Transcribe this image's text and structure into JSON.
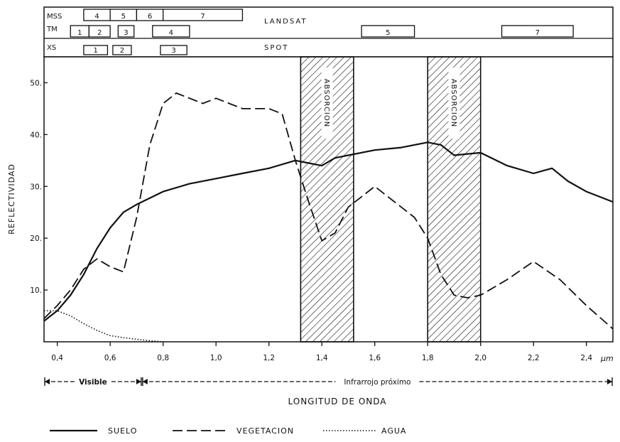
{
  "header": {
    "mss_label": "MSS",
    "tm_label": "TM",
    "xs_label": "XS",
    "landsat_label": "LANDSAT",
    "spot_label": "SPOT",
    "mss_bands": [
      {
        "label": "4",
        "range": [
          0.5,
          0.6
        ]
      },
      {
        "label": "5",
        "range": [
          0.6,
          0.7
        ]
      },
      {
        "label": "6",
        "range": [
          0.7,
          0.8
        ]
      },
      {
        "label": "7",
        "range": [
          0.8,
          1.1
        ]
      }
    ],
    "tm_bands": [
      {
        "label": "1",
        "range": [
          0.45,
          0.52
        ]
      },
      {
        "label": "2",
        "range": [
          0.52,
          0.6
        ]
      },
      {
        "label": "3",
        "range": [
          0.63,
          0.69
        ]
      },
      {
        "label": "4",
        "range": [
          0.76,
          0.9
        ]
      },
      {
        "label": "5",
        "range": [
          1.55,
          1.75
        ]
      },
      {
        "label": "7",
        "range": [
          2.08,
          2.35
        ]
      }
    ],
    "xs_bands": [
      {
        "label": "1",
        "range": [
          0.5,
          0.59
        ]
      },
      {
        "label": "2",
        "range": [
          0.61,
          0.68
        ]
      },
      {
        "label": "3",
        "range": [
          0.79,
          0.89
        ]
      }
    ]
  },
  "chart_data": {
    "type": "line",
    "ylabel": "REFLECTIVIDAD",
    "xlabel": "LONGITUD DE ONDA",
    "x_unit": "µm",
    "xlim": [
      0.35,
      2.5
    ],
    "ylim": [
      0,
      55
    ],
    "x_ticks": [
      "0,4",
      "0,6",
      "0,8",
      "1,0",
      "1,2",
      "1,4",
      "1,6",
      "1,8",
      "2,0",
      "2,2",
      "2,4"
    ],
    "x_tick_values": [
      0.4,
      0.6,
      0.8,
      1.0,
      1.2,
      1.4,
      1.6,
      1.8,
      2.0,
      2.2,
      2.4
    ],
    "y_ticks": [
      "10",
      "20",
      "30",
      "40",
      "50"
    ],
    "y_tick_values": [
      10,
      20,
      30,
      40,
      50
    ],
    "absorption_bands": [
      {
        "label": "ABSORCION",
        "range": [
          1.32,
          1.52
        ]
      },
      {
        "label": "ABSORCION",
        "range": [
          1.8,
          2.0
        ]
      }
    ],
    "regions": [
      {
        "label": "Visible",
        "range": [
          0.35,
          0.72
        ]
      },
      {
        "label": "Infrarrojo próximo",
        "range": [
          0.72,
          2.5
        ]
      }
    ],
    "series": [
      {
        "name": "SUELO",
        "style": "solid",
        "x": [
          0.35,
          0.4,
          0.45,
          0.5,
          0.55,
          0.6,
          0.65,
          0.7,
          0.8,
          0.9,
          1.0,
          1.1,
          1.2,
          1.3,
          1.35,
          1.4,
          1.45,
          1.5,
          1.6,
          1.7,
          1.8,
          1.85,
          1.9,
          2.0,
          2.1,
          2.2,
          2.27,
          2.33,
          2.4,
          2.5
        ],
        "y": [
          4,
          6,
          9,
          13,
          18,
          22,
          25,
          26.5,
          29,
          30.5,
          31.5,
          32.5,
          33.5,
          35,
          34.5,
          34,
          35.5,
          36,
          37,
          37.5,
          38.5,
          38,
          36,
          36.5,
          34,
          32.5,
          33.5,
          31,
          29,
          27
        ]
      },
      {
        "name": "VEGETACION",
        "style": "dashed",
        "x": [
          0.35,
          0.4,
          0.45,
          0.5,
          0.55,
          0.6,
          0.65,
          0.7,
          0.75,
          0.8,
          0.85,
          0.9,
          0.95,
          1.0,
          1.05,
          1.1,
          1.2,
          1.25,
          1.3,
          1.35,
          1.4,
          1.45,
          1.5,
          1.55,
          1.6,
          1.65,
          1.7,
          1.75,
          1.8,
          1.85,
          1.9,
          1.95,
          2.0,
          2.1,
          2.2,
          2.3,
          2.4,
          2.5
        ],
        "y": [
          4.5,
          7,
          10,
          14,
          16,
          14.5,
          13.5,
          24,
          38,
          46,
          48,
          47,
          46,
          47,
          46,
          45,
          45,
          44,
          35,
          27,
          19.5,
          21,
          26,
          28,
          30,
          28,
          26,
          24,
          20,
          13,
          9,
          8.5,
          9,
          12,
          15.5,
          12,
          7,
          2.5
        ]
      },
      {
        "name": "AGUA",
        "style": "dotted",
        "x": [
          0.35,
          0.4,
          0.45,
          0.5,
          0.55,
          0.6,
          0.65,
          0.7,
          0.75,
          0.8
        ],
        "y": [
          6,
          6,
          5,
          3.5,
          2.2,
          1.2,
          0.8,
          0.5,
          0.2,
          0
        ]
      }
    ]
  }
}
